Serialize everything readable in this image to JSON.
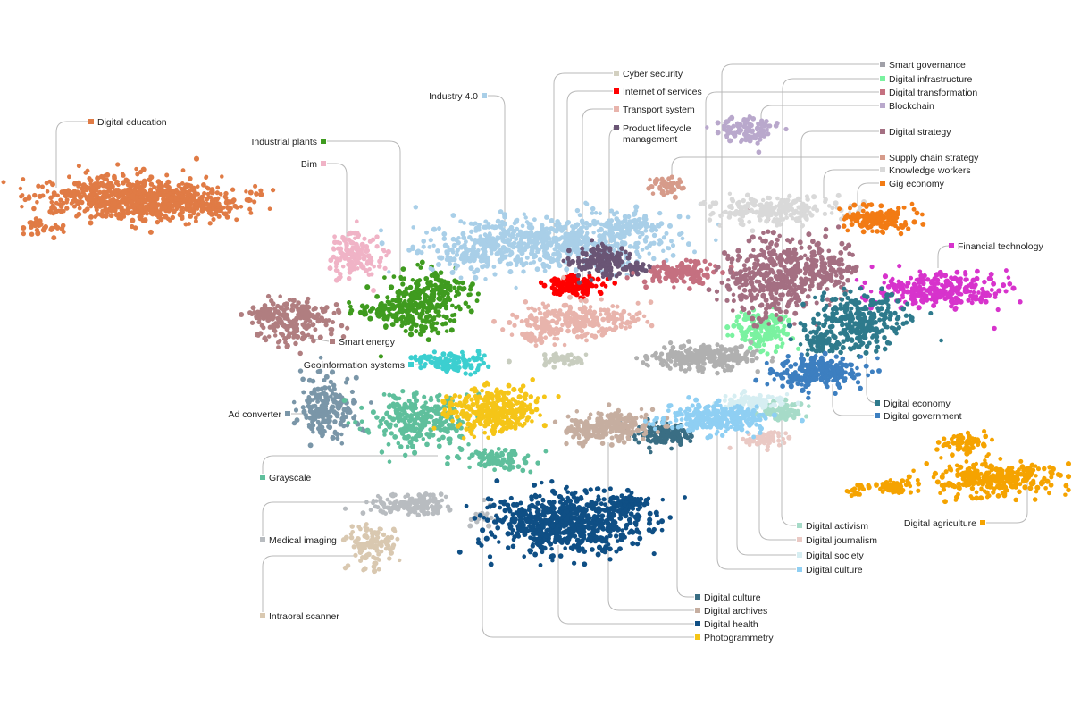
{
  "clusters": [
    {
      "id": "digital-education",
      "label": "Digital education",
      "color": "#e07b45"
    },
    {
      "id": "industrial-plants",
      "label": "Industrial plants",
      "color": "#3f9b1f"
    },
    {
      "id": "bim",
      "label": "Bim",
      "color": "#f0b3c6"
    },
    {
      "id": "industry-40",
      "label": "Industry 4.0",
      "color": "#a9cfe8"
    },
    {
      "id": "cyber-security",
      "label": "Cyber security",
      "color": "#d3d0c0"
    },
    {
      "id": "internet-of-services",
      "label": "Internet of services",
      "color": "#ff0000"
    },
    {
      "id": "transport-system",
      "label": "Transport system",
      "color": "#e8b4ac"
    },
    {
      "id": "product-lifecycle-management",
      "label": "Product lifecycle\nmanagement",
      "color": "#6a5575"
    },
    {
      "id": "smart-governance",
      "label": "Smart governance",
      "color": "#a0a0a8"
    },
    {
      "id": "digital-infrastructure",
      "label": "Digital infrastructure",
      "color": "#7af2a0"
    },
    {
      "id": "digital-transformation",
      "label": "Digital transformation",
      "color": "#c57080"
    },
    {
      "id": "blockchain",
      "label": "Blockchain",
      "color": "#b9a8cc"
    },
    {
      "id": "digital-strategy",
      "label": "Digital strategy",
      "color": "#a46f82"
    },
    {
      "id": "supply-chain-strategy",
      "label": "Supply chain strategy",
      "color": "#d69b8a"
    },
    {
      "id": "knowledge-workers",
      "label": "Knowledge workers",
      "color": "#d9d9d9"
    },
    {
      "id": "gig-economy",
      "label": "Gig economy",
      "color": "#f27b14"
    },
    {
      "id": "financial-technology",
      "label": "Financial technology",
      "color": "#d733cc"
    },
    {
      "id": "smart-energy",
      "label": "Smart energy",
      "color": "#b07e80"
    },
    {
      "id": "geoinformation-systems",
      "label": "Geoinformation systems",
      "color": "#3ccfd0"
    },
    {
      "id": "ad-converter",
      "label": "Ad converter",
      "color": "#7a96a8"
    },
    {
      "id": "grayscale",
      "label": "Grayscale",
      "color": "#5fbf9c"
    },
    {
      "id": "medical-imaging",
      "label": "Medical imaging",
      "color": "#b8bcc0"
    },
    {
      "id": "intraoral-scanner",
      "label": "Intraoral scanner",
      "color": "#d9c8b0"
    },
    {
      "id": "digital-culture-1",
      "label": "Digital culture",
      "color": "#3a6e84"
    },
    {
      "id": "digital-archives",
      "label": "Digital archives",
      "color": "#c6aea0"
    },
    {
      "id": "digital-health",
      "label": "Digital health",
      "color": "#0f4f85"
    },
    {
      "id": "photogrammetry",
      "label": "Photogrammetry",
      "color": "#f5c518"
    },
    {
      "id": "digital-activism",
      "label": "Digital activism",
      "color": "#a6dbc8"
    },
    {
      "id": "digital-journalism",
      "label": "Digital journalism",
      "color": "#eac9c4"
    },
    {
      "id": "digital-society",
      "label": "Digital society",
      "color": "#d6eef2"
    },
    {
      "id": "digital-culture-2",
      "label": "Digital culture",
      "color": "#8fcff3"
    },
    {
      "id": "digital-economy",
      "label": "Digital economy",
      "color": "#2e7a8c"
    },
    {
      "id": "digital-government",
      "label": "Digital government",
      "color": "#3d7fc0"
    },
    {
      "id": "digital-agriculture",
      "label": "Digital agriculture",
      "color": "#f5a300"
    },
    {
      "id": "unlabeled-smart-gov-cluster",
      "label": "",
      "color": "#b0b0b0"
    },
    {
      "id": "unlabeled-tan-cluster",
      "label": "",
      "color": "#c8cdbf"
    }
  ]
}
